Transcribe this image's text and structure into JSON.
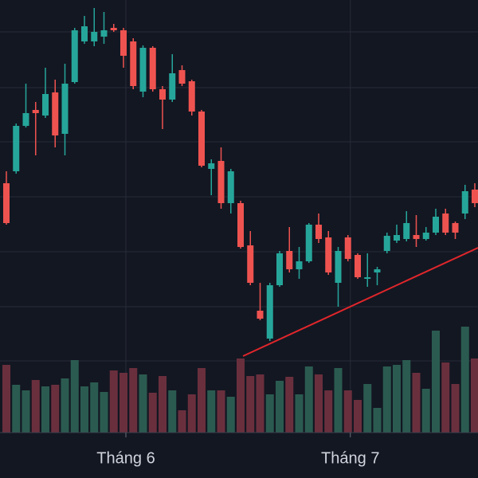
{
  "chart_data": {
    "type": "candlestick",
    "categories": [
      null,
      null,
      null,
      null,
      null,
      null,
      null,
      null,
      null,
      null,
      null,
      null,
      "Tháng 6",
      null,
      null,
      null,
      null,
      null,
      null,
      null,
      null,
      null,
      null,
      null,
      null,
      null,
      null,
      null,
      null,
      null,
      null,
      null,
      null,
      null,
      null,
      "Tháng 7",
      null,
      null,
      null,
      null,
      null,
      null,
      null,
      null,
      null,
      null,
      null,
      null,
      null
    ],
    "open": [
      210,
      225,
      282,
      302,
      295,
      324,
      272,
      337,
      388,
      388,
      394,
      405,
      402,
      388,
      325,
      380,
      328,
      315,
      352,
      338,
      300,
      228,
      238,
      185,
      185,
      132,
      50,
      15,
      82,
      125,
      102,
      112,
      158,
      142,
      85,
      142,
      120,
      90,
      98,
      125,
      138,
      140,
      145,
      140,
      148,
      172,
      160,
      172,
      202
    ],
    "high": [
      225,
      285,
      335,
      312,
      355,
      340,
      360,
      405,
      420,
      430,
      425,
      410,
      405,
      392,
      383,
      382,
      332,
      372,
      358,
      340,
      302,
      240,
      255,
      228,
      188,
      150,
      85,
      85,
      125,
      155,
      130,
      160,
      172,
      150,
      130,
      145,
      122,
      122,
      105,
      148,
      158,
      175,
      170,
      155,
      178,
      178,
      162,
      208,
      210
    ],
    "low": [
      158,
      222,
      280,
      245,
      292,
      255,
      245,
      335,
      385,
      382,
      385,
      400,
      355,
      328,
      318,
      325,
      278,
      312,
      332,
      295,
      230,
      195,
      178,
      172,
      128,
      82,
      38,
      12,
      80,
      98,
      90,
      110,
      135,
      95,
      55,
      112,
      90,
      80,
      82,
      122,
      135,
      137,
      130,
      138,
      145,
      145,
      140,
      165,
      180
    ],
    "close": [
      160,
      282,
      298,
      298,
      322,
      270,
      335,
      402,
      407,
      400,
      402,
      402,
      370,
      332,
      380,
      328,
      315,
      348,
      335,
      300,
      232,
      235,
      185,
      225,
      130,
      85,
      40,
      82,
      122,
      102,
      112,
      158,
      140,
      98,
      125,
      115,
      92,
      92,
      102,
      144,
      145,
      160,
      140,
      148,
      168,
      148,
      148,
      200,
      185
    ],
    "volume": [
      85,
      60,
      53,
      66,
      58,
      60,
      68,
      91,
      58,
      63,
      51,
      78,
      75,
      81,
      73,
      50,
      71,
      53,
      28,
      48,
      81,
      53,
      53,
      45,
      93,
      71,
      73,
      48,
      65,
      70,
      48,
      83,
      73,
      53,
      81,
      53,
      41,
      61,
      31,
      83,
      85,
      91,
      75,
      55,
      128,
      88,
      61,
      133,
      93
    ],
    "ylim": [
      0,
      440
    ],
    "volume_lim": [
      0,
      140
    ],
    "up_color": "#26a69a",
    "down_color": "#ef5350",
    "volume_up_color": "#2b5b50",
    "volume_down_color": "#6a2f3d"
  }
}
